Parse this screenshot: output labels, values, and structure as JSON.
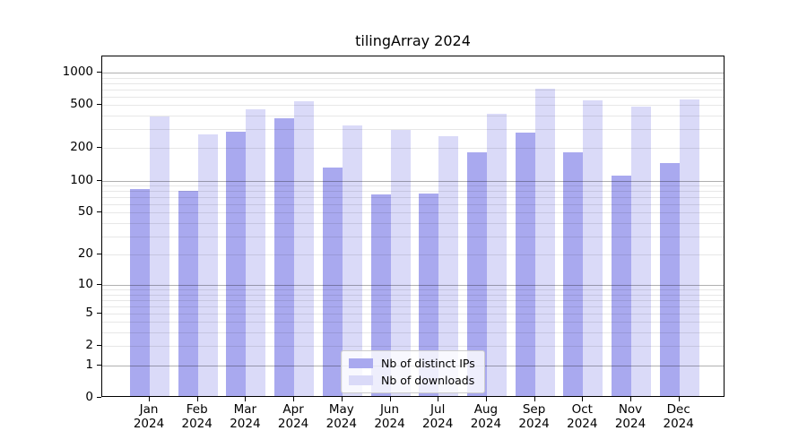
{
  "chart_data": {
    "type": "bar",
    "title": "tilingArray 2024",
    "categories": [
      "Jan 2024",
      "Feb 2024",
      "Mar 2024",
      "Apr 2024",
      "May 2024",
      "Jun 2024",
      "Jul 2024",
      "Aug 2024",
      "Sep 2024",
      "Oct 2024",
      "Nov 2024",
      "Dec 2024"
    ],
    "series": [
      {
        "name": "Nb of distinct IPs",
        "color": "#a9a9ef",
        "values": [
          80,
          77,
          275,
          365,
          127,
          72,
          73,
          175,
          268,
          175,
          108,
          141
        ]
      },
      {
        "name": "Nb of downloads",
        "color": "#dadaf8",
        "values": [
          380,
          260,
          440,
          520,
          312,
          286,
          250,
          398,
          685,
          535,
          466,
          545
        ]
      }
    ],
    "xlabel": "",
    "ylabel": "",
    "yscale": "log1p",
    "yticks": [
      0,
      1,
      2,
      5,
      10,
      20,
      50,
      100,
      200,
      500,
      1000
    ],
    "ylim": [
      0,
      1410
    ],
    "grid": true,
    "grid_major_values": [
      1,
      10,
      100,
      1000
    ],
    "legend": {
      "labels": [
        "Nb of distinct IPs",
        "Nb of downloads"
      ],
      "position": "bottom-center-inside"
    },
    "colors": {
      "bar_distinct_ips": "#a9a9ef",
      "bar_downloads": "#dadaf8",
      "grid_minor": "#e7e7e7",
      "grid_major": "#b0b0b0",
      "axis": "#000000",
      "background": "#ffffff",
      "legend_border": "#cccccc"
    }
  }
}
